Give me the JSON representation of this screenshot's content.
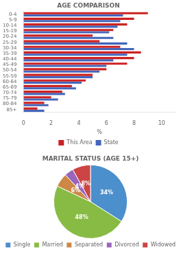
{
  "chart_data": [
    {
      "type": "bar",
      "orientation": "horizontal",
      "title": "AGE COMPARISON",
      "categories": [
        "85+",
        "80-84",
        "75-79",
        "70-74",
        "65-69",
        "60-64",
        "55-59",
        "50-54",
        "45-49",
        "40-44",
        "35-39",
        "30-34",
        "25-29",
        "20-24",
        "15-19",
        "10-14",
        "5-9",
        "0-4"
      ],
      "series": [
        {
          "name": "This Area",
          "color": "#cc2222",
          "values": [
            1.0,
            1.5,
            2.0,
            2.8,
            3.5,
            4.5,
            5.0,
            6.0,
            7.5,
            8.0,
            8.5,
            7.0,
            5.5,
            5.0,
            6.5,
            7.5,
            8.0,
            9.0
          ]
        },
        {
          "name": "State",
          "color": "#4466bb",
          "values": [
            1.5,
            1.8,
            2.5,
            3.0,
            3.8,
            4.2,
            5.0,
            5.5,
            6.0,
            6.5,
            7.5,
            8.0,
            7.5,
            6.5,
            6.2,
            6.8,
            7.0,
            7.2
          ]
        }
      ],
      "xlabel": "%",
      "xlim": [
        0,
        11
      ],
      "xticks": [
        0,
        2,
        4,
        6,
        8,
        10
      ],
      "grid": false,
      "legend": "bottom"
    },
    {
      "type": "pie",
      "title": "MARITAL STATUS (AGE 15+)",
      "categories": [
        "Single",
        "Married",
        "Separated",
        "Divorced",
        "Widowed"
      ],
      "values": [
        34,
        48,
        6,
        4,
        8
      ],
      "value_labels": [
        "34%",
        "48%",
        "6%",
        "4%",
        "8%"
      ],
      "colors": [
        "#4b8fcc",
        "#88bb44",
        "#cc8844",
        "#9966bb",
        "#cc4444"
      ],
      "data_labels": true,
      "legend": "bottom"
    }
  ]
}
